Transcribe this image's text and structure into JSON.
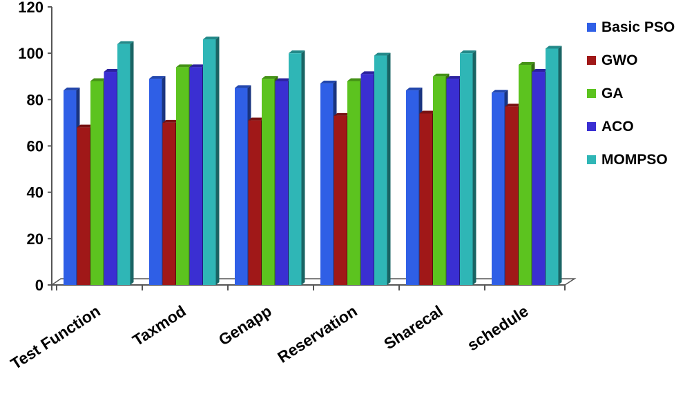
{
  "chart_data": {
    "type": "bar",
    "categories": [
      "Test Function",
      "Taxmod",
      "Genapp",
      "Reservation",
      "Sharecal",
      "schedule"
    ],
    "series": [
      {
        "name": "Basic PSO",
        "color": "#2f5fe6",
        "values": [
          84,
          89,
          85,
          87,
          84,
          83
        ]
      },
      {
        "name": "GWO",
        "color": "#a01818",
        "values": [
          68,
          70,
          71,
          73,
          74,
          77
        ]
      },
      {
        "name": "GA",
        "color": "#5cc31f",
        "values": [
          88,
          94,
          89,
          88,
          90,
          95
        ]
      },
      {
        "name": "ACO",
        "color": "#3a2fd2",
        "values": [
          92,
          94,
          88,
          91,
          89,
          92
        ]
      },
      {
        "name": "MOMPSO",
        "color": "#2fb6b6",
        "values": [
          104,
          106,
          100,
          99,
          100,
          102
        ]
      }
    ],
    "ylim": [
      0,
      120
    ],
    "yticks": [
      "0",
      "20",
      "40",
      "60",
      "80",
      "100",
      "120"
    ],
    "grid": false,
    "legend_position": "right"
  }
}
